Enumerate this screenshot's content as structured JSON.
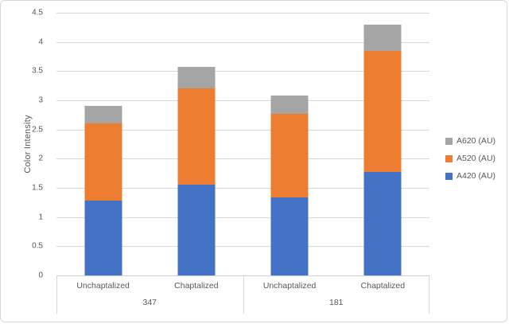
{
  "chart_data": {
    "type": "bar",
    "stacked": true,
    "title": "",
    "ylabel": "Color Intensity",
    "xlabel": "",
    "ylim": [
      0,
      4.5
    ],
    "ytick_values": [
      0,
      0.5,
      1,
      1.5,
      2,
      2.5,
      3,
      3.5,
      4,
      4.5
    ],
    "ytick_labels": [
      "0",
      "0.5",
      "1",
      "1.5",
      "2",
      "2.5",
      "3",
      "3.5",
      "4",
      "4.5"
    ],
    "grid": true,
    "categories": [
      "Unchaptalized",
      "Chaptalized",
      "Unchaptalized",
      "Chaptalized"
    ],
    "groups": [
      {
        "label": "347",
        "span": [
          0,
          1
        ]
      },
      {
        "label": "181",
        "span": [
          2,
          3
        ]
      }
    ],
    "series": [
      {
        "name": "A420 (AU)",
        "color": "#4472C4",
        "values": [
          1.28,
          1.55,
          1.34,
          1.77
        ]
      },
      {
        "name": "A520 (AU)",
        "color": "#ED7D31",
        "values": [
          1.32,
          1.66,
          1.43,
          2.08
        ]
      },
      {
        "name": "A620 (AU)",
        "color": "#A5A5A5",
        "values": [
          0.3,
          0.36,
          0.31,
          0.45
        ]
      }
    ],
    "stack_totals": [
      2.9,
      3.57,
      3.08,
      4.3
    ],
    "legend_position": "right",
    "legend_order_top_to_bottom": [
      "A620 (AU)",
      "A520 (AU)",
      "A420 (AU)"
    ]
  },
  "style": {
    "gridline_color": "#D9D9D9",
    "axis_line_color": "#CFCFCF",
    "text_color": "#595959",
    "border_color": "#D9D9D9",
    "background": "#FFFFFF"
  }
}
